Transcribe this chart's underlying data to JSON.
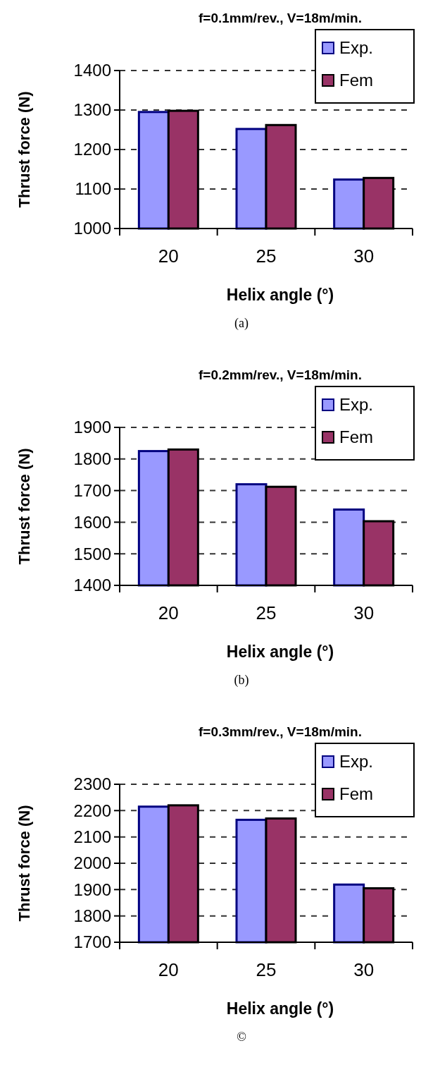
{
  "chart_data": [
    {
      "type": "bar",
      "title": "f=0.1mm/rev., V=18m/min.",
      "xlabel": "Helix angle (°)",
      "ylabel": "Thrust force (N)",
      "categories": [
        "20",
        "25",
        "30"
      ],
      "series": [
        {
          "name": "Exp.",
          "color": "#9999ff",
          "values": [
            1295,
            1252,
            1124
          ]
        },
        {
          "name": "Fem",
          "color": "#993366",
          "values": [
            1298,
            1262,
            1128
          ]
        }
      ],
      "ylim": [
        1000,
        1400
      ],
      "yticks": [
        1000,
        1100,
        1200,
        1300,
        1400
      ],
      "grid": "y",
      "legend": "top right",
      "annotations": [
        "(a)"
      ]
    },
    {
      "type": "bar",
      "title": "f=0.2mm/rev., V=18m/min.",
      "xlabel": "Helix angle (°)",
      "ylabel": "Thrust force (N)",
      "categories": [
        "20",
        "25",
        "30"
      ],
      "series": [
        {
          "name": "Exp.",
          "color": "#9999ff",
          "values": [
            1825,
            1720,
            1640
          ]
        },
        {
          "name": "Fem",
          "color": "#993366",
          "values": [
            1830,
            1712,
            1603
          ]
        }
      ],
      "ylim": [
        1400,
        1900
      ],
      "yticks": [
        1400,
        1500,
        1600,
        1700,
        1800,
        1900
      ],
      "grid": "y",
      "legend": "top right",
      "annotations": [
        "(b)"
      ]
    },
    {
      "type": "bar",
      "title": "f=0.3mm/rev., V=18m/min.",
      "xlabel": "Helix angle (°)",
      "ylabel": "Thrust force (N)",
      "categories": [
        "20",
        "25",
        "30"
      ],
      "series": [
        {
          "name": "Exp.",
          "color": "#9999ff",
          "values": [
            2215,
            2165,
            1919
          ]
        },
        {
          "name": "Fem",
          "color": "#993366",
          "values": [
            2220,
            2170,
            1905
          ]
        }
      ],
      "ylim": [
        1700,
        2300
      ],
      "yticks": [
        1700,
        1800,
        1900,
        2000,
        2100,
        2200,
        2300
      ],
      "grid": "y",
      "legend": "top right",
      "annotations": [
        "©"
      ]
    }
  ]
}
